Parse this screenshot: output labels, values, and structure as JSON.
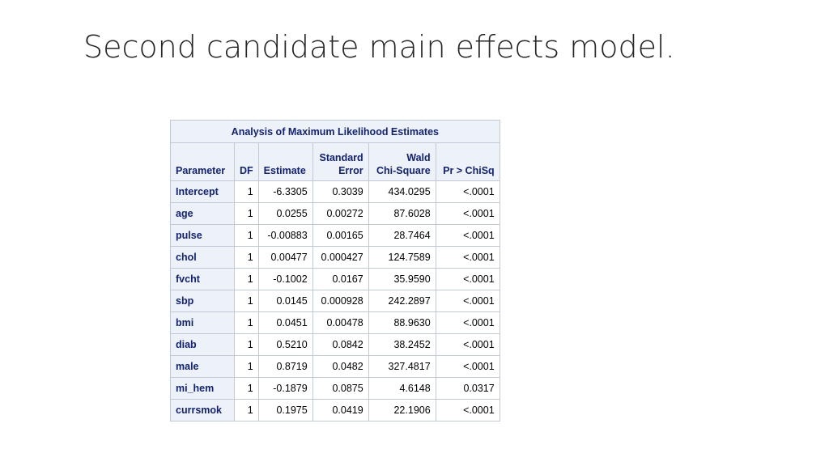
{
  "slide": {
    "title": "Second candidate main effects model."
  },
  "table": {
    "caption": "Analysis of Maximum Likelihood Estimates",
    "headers": {
      "parameter": "Parameter",
      "df": "DF",
      "estimate": "Estimate",
      "se_line1": "Standard",
      "se_line2": "Error",
      "wald_line1": "Wald",
      "wald_line2": "Chi-Square",
      "p": "Pr > ChiSq"
    },
    "rows": [
      {
        "parameter": "Intercept",
        "df": "1",
        "estimate": "-6.3305",
        "se": "0.3039",
        "wald": "434.0295",
        "p": "<.0001"
      },
      {
        "parameter": "age",
        "df": "1",
        "estimate": "0.0255",
        "se": "0.00272",
        "wald": "87.6028",
        "p": "<.0001"
      },
      {
        "parameter": "pulse",
        "df": "1",
        "estimate": "-0.00883",
        "se": "0.00165",
        "wald": "28.7464",
        "p": "<.0001"
      },
      {
        "parameter": "chol",
        "df": "1",
        "estimate": "0.00477",
        "se": "0.000427",
        "wald": "124.7589",
        "p": "<.0001"
      },
      {
        "parameter": "fvcht",
        "df": "1",
        "estimate": "-0.1002",
        "se": "0.0167",
        "wald": "35.9590",
        "p": "<.0001"
      },
      {
        "parameter": "sbp",
        "df": "1",
        "estimate": "0.0145",
        "se": "0.000928",
        "wald": "242.2897",
        "p": "<.0001"
      },
      {
        "parameter": "bmi",
        "df": "1",
        "estimate": "0.0451",
        "se": "0.00478",
        "wald": "88.9630",
        "p": "<.0001"
      },
      {
        "parameter": "diab",
        "df": "1",
        "estimate": "0.5210",
        "se": "0.0842",
        "wald": "38.2452",
        "p": "<.0001"
      },
      {
        "parameter": "male",
        "df": "1",
        "estimate": "0.8719",
        "se": "0.0482",
        "wald": "327.4817",
        "p": "<.0001"
      },
      {
        "parameter": "mi_hem",
        "df": "1",
        "estimate": "-0.1879",
        "se": "0.0875",
        "wald": "4.6148",
        "p": "0.0317"
      },
      {
        "parameter": "currsmok",
        "df": "1",
        "estimate": "0.1975",
        "se": "0.0419",
        "wald": "22.1906",
        "p": "<.0001"
      }
    ]
  }
}
